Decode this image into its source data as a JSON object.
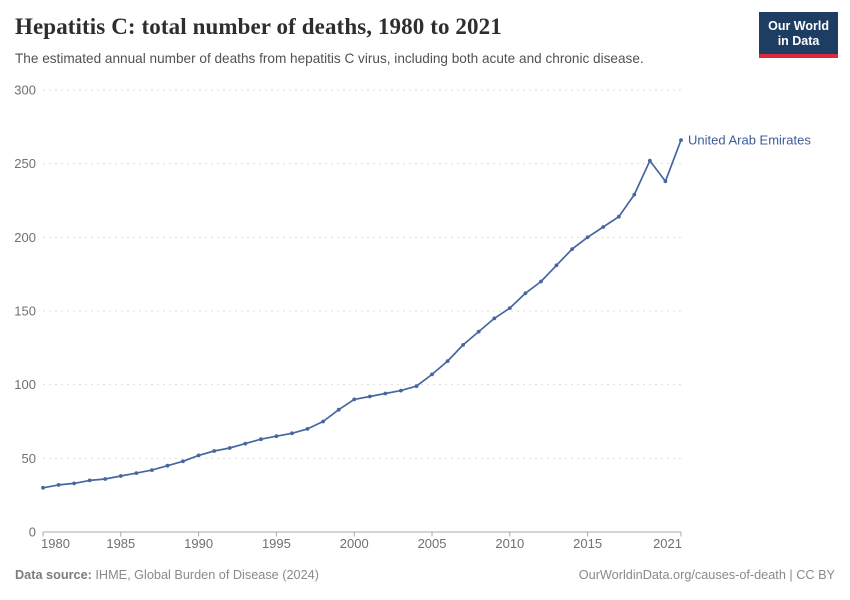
{
  "header": {
    "title": "Hepatitis C: total number of deaths, 1980 to 2021",
    "subtitle": "The estimated annual number of deaths from hepatitis C virus, including both acute and chronic disease.",
    "logo": {
      "line1": "Our World",
      "line2": "in Data"
    }
  },
  "chart_data": {
    "type": "line",
    "title": "Hepatitis C: total number of deaths, 1980 to 2021",
    "xlabel": "",
    "ylabel": "",
    "grid": true,
    "legend_position": "end-of-line label",
    "ylim": [
      0,
      300
    ],
    "yticks": [
      0,
      50,
      100,
      150,
      200,
      250,
      300
    ],
    "xlim": [
      1980,
      2021
    ],
    "xticks": [
      1980,
      1985,
      1990,
      1995,
      2000,
      2005,
      2010,
      2015,
      2021
    ],
    "x": [
      1980,
      1981,
      1982,
      1983,
      1984,
      1985,
      1986,
      1987,
      1988,
      1989,
      1990,
      1991,
      1992,
      1993,
      1994,
      1995,
      1996,
      1997,
      1998,
      1999,
      2000,
      2001,
      2002,
      2003,
      2004,
      2005,
      2006,
      2007,
      2008,
      2009,
      2010,
      2011,
      2012,
      2013,
      2014,
      2015,
      2016,
      2017,
      2018,
      2019,
      2020,
      2021
    ],
    "series": [
      {
        "name": "United Arab Emirates",
        "values": [
          30,
          32,
          33,
          35,
          36,
          38,
          40,
          42,
          45,
          48,
          52,
          55,
          57,
          60,
          63,
          65,
          67,
          70,
          75,
          83,
          90,
          92,
          94,
          96,
          99,
          107,
          116,
          127,
          136,
          145,
          152,
          162,
          170,
          181,
          192,
          200,
          207,
          214,
          229,
          252,
          238,
          266
        ]
      }
    ]
  },
  "colors": {
    "line": "#4766a0",
    "series_label": "#3d5c98",
    "gridline": "#dedede",
    "axis_line": "#a8a8a8",
    "tick_text": "#707070",
    "logo_bg": "#1d3d63",
    "logo_red": "#e0263a"
  },
  "footer": {
    "source_label": "Data source:",
    "source_text": " IHME, Global Burden of Disease (2024)",
    "right_text": "OurWorldinData.org/causes-of-death | CC BY"
  }
}
